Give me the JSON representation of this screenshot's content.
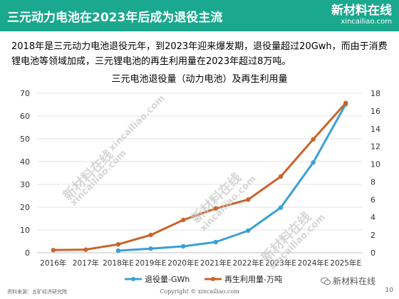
{
  "header": {
    "title": "三元动力电池在2023年后成为退役主流",
    "brand_name": "新材料在线",
    "brand_url": "xincailiao.com",
    "color": "#1aa88e"
  },
  "intro_text": "2018年是三元动力电池退役元年，到2023年迎来爆发期，退役量超过20Gwh，而由于消费锂电池等领域加成，三元锂电池的再生利用量在2023年超过8万吨。",
  "watermarks": {
    "brand": "新材料在线",
    "url": "xincailiao.com"
  },
  "chart_data": {
    "type": "line",
    "title": "三元电池退役量（动力电池）及再生利用量",
    "categories": [
      "2016年",
      "2017年",
      "2018年E",
      "2019年E",
      "2020年E",
      "2021年E",
      "2022年E",
      "2023年E",
      "2024年E",
      "2025年E"
    ],
    "left_axis": {
      "min": 0,
      "max": 70,
      "ticks": [
        0,
        10,
        20,
        30,
        40,
        50,
        60,
        70
      ]
    },
    "right_axis": {
      "min": 0,
      "max": 18,
      "ticks": [
        0,
        2,
        4,
        6,
        8,
        10,
        12,
        14,
        16,
        18
      ]
    },
    "series": [
      {
        "name": "退役量-GWh",
        "axis": "left",
        "color": "#3aa0d6",
        "values": [
          null,
          null,
          0.9,
          1.8,
          2.8,
          4.7,
          9.7,
          19.8,
          39.6,
          65.2
        ]
      },
      {
        "name": "再生利用量-万吨",
        "axis": "right",
        "color": "#c8642a",
        "values": [
          0.3,
          0.35,
          0.95,
          2.0,
          3.7,
          5.0,
          6.0,
          8.6,
          12.8,
          16.9
        ]
      }
    ],
    "grid": true,
    "legend": "bottom"
  },
  "footer": {
    "source": "资料来源：五矿经济研究院",
    "copyright": "Copyright © xincailiao.com",
    "page": "10",
    "wechat_label": "新材料在线"
  }
}
